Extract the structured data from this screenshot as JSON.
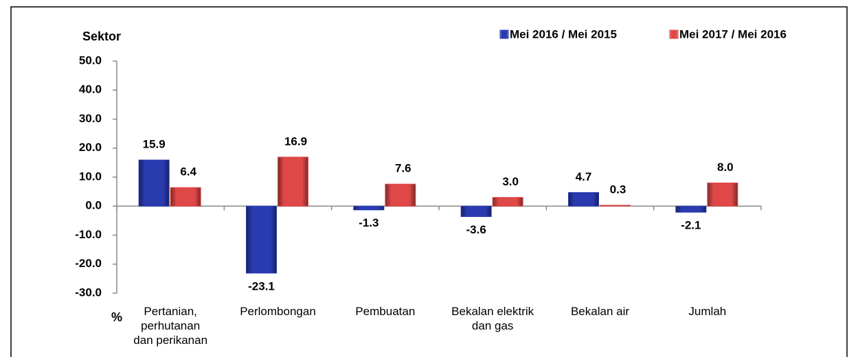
{
  "chart_data": {
    "type": "bar",
    "y_axis_title": "Sektor",
    "x_axis_title": "%",
    "categories": [
      "Pertanian,\nperhutanan\ndan perikanan",
      "Perlombongan",
      "Pembuatan",
      "Bekalan elektrik\ndan gas",
      "Bekalan air",
      "Jumlah"
    ],
    "series": [
      {
        "name": "Mei 2016 / Mei 2015",
        "color": "#2a3bb0",
        "values": [
          15.9,
          -23.1,
          -1.3,
          -3.6,
          4.7,
          -2.1
        ],
        "value_labels": [
          "15.9",
          "-23.1",
          "-1.3",
          "-3.6",
          "4.7",
          "-2.1"
        ]
      },
      {
        "name": "Mei 2017 / Mei 2016",
        "color": "#e04848",
        "values": [
          6.4,
          16.9,
          7.6,
          3.0,
          0.3,
          8.0
        ],
        "value_labels": [
          "6.4",
          "16.9",
          "7.6",
          "3.0",
          "0.3",
          "8.0"
        ]
      }
    ],
    "ylim": [
      -30,
      50
    ],
    "yticks": [
      {
        "value": 50,
        "label": "50.0"
      },
      {
        "value": 40,
        "label": "40.0"
      },
      {
        "value": 30,
        "label": "30.0"
      },
      {
        "value": 20,
        "label": "20.0"
      },
      {
        "value": 10,
        "label": "10.0"
      },
      {
        "value": 0,
        "label": "0.0"
      },
      {
        "value": -10,
        "label": "-10.0"
      },
      {
        "value": -20,
        "label": "-20.0"
      },
      {
        "value": -30,
        "label": "-30.0"
      }
    ],
    "grid": false,
    "legend": "top-right"
  }
}
